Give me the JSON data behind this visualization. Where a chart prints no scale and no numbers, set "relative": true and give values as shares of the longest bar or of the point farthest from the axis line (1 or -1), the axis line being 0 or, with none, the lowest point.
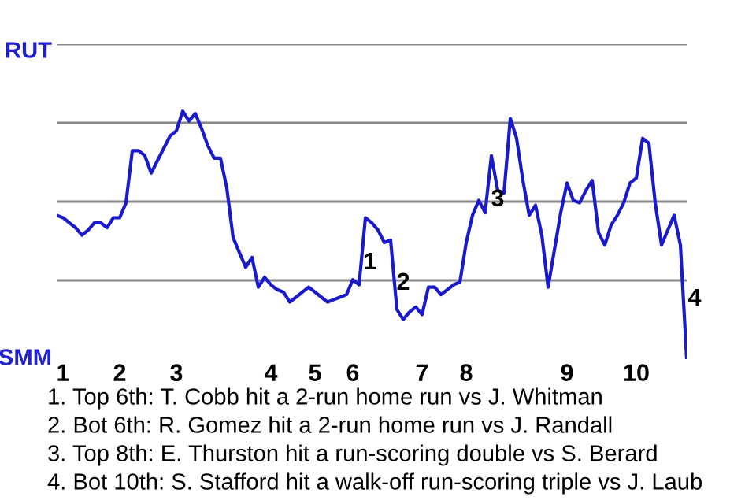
{
  "chart_data": {
    "type": "line",
    "relative": true,
    "categories": [
      null,
      "1",
      null,
      null,
      null,
      null,
      null,
      null,
      null,
      null,
      "2",
      null,
      null,
      null,
      null,
      null,
      null,
      null,
      null,
      "3",
      null,
      null,
      null,
      null,
      null,
      null,
      null,
      null,
      null,
      null,
      null,
      null,
      null,
      null,
      "4",
      null,
      null,
      null,
      null,
      null,
      null,
      "5",
      null,
      null,
      null,
      null,
      null,
      "6",
      null,
      null,
      null,
      null,
      null,
      null,
      null,
      null,
      null,
      null,
      "7",
      null,
      null,
      null,
      null,
      null,
      null,
      "8",
      null,
      null,
      null,
      null,
      null,
      null,
      null,
      null,
      null,
      null,
      null,
      null,
      null,
      null,
      null,
      "9",
      null,
      null,
      null,
      null,
      null,
      null,
      null,
      null,
      null,
      null,
      "10",
      null,
      null,
      null,
      null,
      null,
      null,
      null,
      null
    ],
    "grid": "y",
    "line_style": "solid",
    "marker": "none",
    "series": [
      {
        "color": "#1a1acc",
        "values": [
          0.58,
          0.57,
          0.55,
          0.53,
          0.5,
          0.52,
          0.55,
          0.55,
          0.53,
          0.57,
          0.57,
          0.63,
          0.84,
          0.84,
          0.82,
          0.75,
          0.8,
          0.85,
          0.9,
          0.92,
          1.0,
          0.96,
          0.99,
          0.93,
          0.86,
          0.81,
          0.81,
          0.69,
          0.49,
          0.43,
          0.37,
          0.41,
          0.29,
          0.33,
          0.3,
          0.28,
          0.27,
          0.23,
          0.25,
          0.27,
          0.29,
          0.27,
          0.25,
          0.23,
          0.24,
          0.25,
          0.26,
          0.32,
          0.3,
          0.57,
          0.55,
          0.52,
          0.47,
          0.48,
          0.2,
          0.16,
          0.19,
          0.21,
          0.18,
          0.29,
          0.29,
          0.26,
          0.28,
          0.3,
          0.31,
          0.47,
          0.58,
          0.64,
          0.59,
          0.82,
          0.68,
          0.67,
          0.97,
          0.89,
          0.72,
          0.58,
          0.62,
          0.5,
          0.29,
          0.44,
          0.59,
          0.71,
          0.64,
          0.63,
          0.68,
          0.72,
          0.51,
          0.46,
          0.54,
          0.58,
          0.63,
          0.71,
          0.73,
          0.89,
          0.87,
          0.63,
          0.46,
          0.52,
          0.58,
          0.46,
          0.0
        ]
      }
    ],
    "annotations": [
      "1",
      "2",
      "3",
      "4",
      "RUT",
      "SMM",
      "1. Top 6th: T. Cobb hit a 2-run home run vs J. Whitman",
      "2. Bot 6th: R. Gomez hit a 2-run home run vs J. Randall",
      "3. Top 8th: E. Thurston hit a run-scoring double vs S. Berard",
      "4. Bot 10th: S. Stafford hit a walk-off run-scoring triple vs J. Laub"
    ]
  }
}
